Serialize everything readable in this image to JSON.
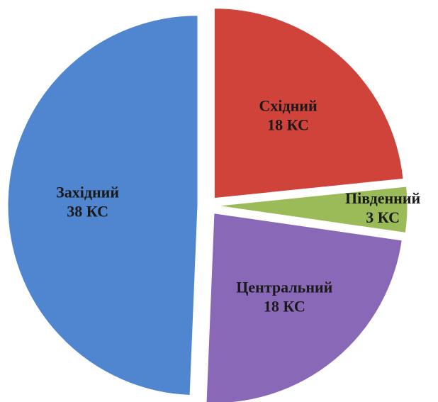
{
  "chart_data": {
    "type": "pie",
    "categories": [
      "Східний",
      "Південний",
      "Центральний",
      "Західний"
    ],
    "values": [
      18,
      3,
      18,
      38
    ],
    "value_labels": [
      "18 КС",
      "3 КС",
      "18 КС",
      "38 КС"
    ],
    "colors": [
      "#d0433b",
      "#9bbb59",
      "#8a68b8",
      "#4f86cf"
    ]
  }
}
